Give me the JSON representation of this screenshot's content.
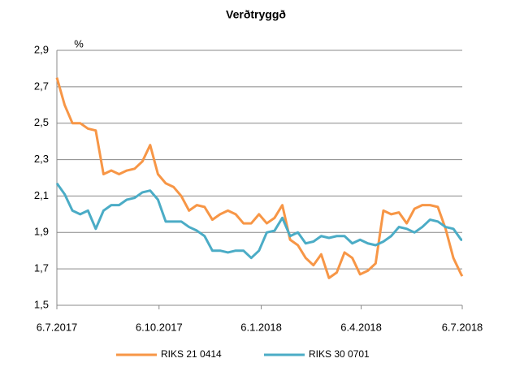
{
  "chart_data": {
    "type": "line",
    "title": "Verðtryggð",
    "y_unit": "%",
    "x": [
      "2017-07-06",
      "2017-07-13",
      "2017-07-20",
      "2017-07-27",
      "2017-08-03",
      "2017-08-10",
      "2017-08-17",
      "2017-08-24",
      "2017-08-31",
      "2017-09-07",
      "2017-09-14",
      "2017-09-21",
      "2017-09-28",
      "2017-10-05",
      "2017-10-12",
      "2017-10-19",
      "2017-10-26",
      "2017-11-02",
      "2017-11-09",
      "2017-11-16",
      "2017-11-23",
      "2017-11-30",
      "2017-12-07",
      "2017-12-14",
      "2017-12-21",
      "2017-12-28",
      "2018-01-04",
      "2018-01-11",
      "2018-01-18",
      "2018-01-25",
      "2018-02-01",
      "2018-02-08",
      "2018-02-15",
      "2018-02-22",
      "2018-03-01",
      "2018-03-08",
      "2018-03-15",
      "2018-03-22",
      "2018-03-29",
      "2018-04-05",
      "2018-04-12",
      "2018-04-19",
      "2018-04-26",
      "2018-05-03",
      "2018-05-10",
      "2018-05-17",
      "2018-05-24",
      "2018-05-31",
      "2018-06-07",
      "2018-06-14",
      "2018-06-21",
      "2018-06-28",
      "2018-07-05",
      "2018-07-06"
    ],
    "series": [
      {
        "name": "RIKS 21 0414",
        "color": "#f79646",
        "values": [
          2.75,
          2.6,
          2.5,
          2.5,
          2.47,
          2.46,
          2.22,
          2.24,
          2.22,
          2.24,
          2.25,
          2.29,
          2.38,
          2.22,
          2.17,
          2.15,
          2.1,
          2.02,
          2.05,
          2.04,
          1.97,
          2.0,
          2.02,
          2.0,
          1.95,
          1.95,
          2.0,
          1.95,
          1.98,
          2.05,
          1.86,
          1.83,
          1.76,
          1.72,
          1.78,
          1.65,
          1.68,
          1.79,
          1.76,
          1.67,
          1.69,
          1.73,
          2.02,
          2.0,
          2.01,
          1.95,
          2.03,
          2.05,
          2.05,
          2.04,
          1.92,
          1.76,
          1.67,
          1.66
        ]
      },
      {
        "name": "RIKS 30 0701",
        "color": "#4bacc6",
        "values": [
          2.17,
          2.11,
          2.02,
          2.0,
          2.02,
          1.92,
          2.02,
          2.05,
          2.05,
          2.08,
          2.09,
          2.12,
          2.13,
          2.08,
          1.96,
          1.96,
          1.96,
          1.93,
          1.91,
          1.88,
          1.8,
          1.8,
          1.79,
          1.8,
          1.8,
          1.76,
          1.8,
          1.9,
          1.91,
          1.98,
          1.88,
          1.9,
          1.84,
          1.85,
          1.88,
          1.87,
          1.88,
          1.88,
          1.84,
          1.86,
          1.84,
          1.83,
          1.85,
          1.88,
          1.93,
          1.92,
          1.9,
          1.93,
          1.97,
          1.96,
          1.93,
          1.92,
          1.86,
          1.86
        ]
      }
    ],
    "xlim": [
      "2017-07-06",
      "2018-07-06"
    ],
    "xticks": [
      {
        "value": "2017-07-06",
        "label": "6.7.2017"
      },
      {
        "value": "2017-10-06",
        "label": "6.10.2017"
      },
      {
        "value": "2018-01-06",
        "label": "6.1.2018"
      },
      {
        "value": "2018-04-06",
        "label": "6.4.2018"
      },
      {
        "value": "2018-07-06",
        "label": "6.7.2018"
      }
    ],
    "ylim": [
      1.5,
      2.9
    ],
    "yticks": [
      {
        "value": 1.5,
        "label": "1,5"
      },
      {
        "value": 1.7,
        "label": "1,7"
      },
      {
        "value": 1.9,
        "label": "1,9"
      },
      {
        "value": 2.1,
        "label": "2,1"
      },
      {
        "value": 2.3,
        "label": "2,3"
      },
      {
        "value": 2.5,
        "label": "2,5"
      },
      {
        "value": 2.7,
        "label": "2,7"
      },
      {
        "value": 2.9,
        "label": "2,9"
      }
    ],
    "grid": true,
    "legend": "bottom"
  }
}
